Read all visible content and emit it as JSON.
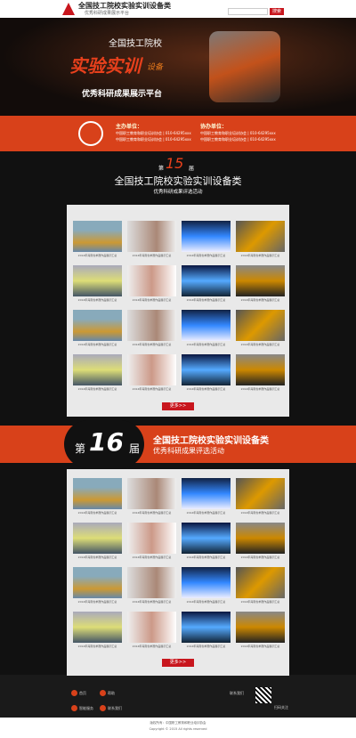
{
  "header": {
    "title": "全国技工院校实验实训设备类",
    "subtitle": "优秀科研成果展示平台",
    "search_button": "搜索"
  },
  "banner": {
    "line1": "全国技工院校",
    "line2": "实验实训",
    "line2b": "设备",
    "line3": "优秀科研成果展示平台"
  },
  "organizers": {
    "host_label": "主办单位：",
    "host_lines": [
      "中国职工教育和职业培训协会 | 010-64295xxx",
      "中国职工教育和职业培训协会 | 010-64295xxx"
    ],
    "co_label": "协办单位：",
    "co_lines": [
      "中国职工教育和职业培训协会 | 010-64295xxx",
      "中国职工教育和职业培训协会 | 010-64295xxx"
    ]
  },
  "sections": [
    {
      "prefix": "第",
      "edition": "15",
      "suffix": "届",
      "title": "全国技工院校实验实训设备类",
      "subtitle": "优秀科研成果评选活动",
      "more": "更多>>",
      "items": [
        "2014年海南省参赛作品展示汇总",
        "2014年海南省参赛作品展示汇总",
        "2014年海南省参赛作品展示汇总",
        "2014年海南省参赛作品展示汇总",
        "2014年海南省参赛作品展示汇总",
        "2014年海南省参赛作品展示汇总",
        "2014年海南省参赛作品展示汇总",
        "2014年海南省参赛作品展示汇总",
        "2014年海南省参赛作品展示汇总",
        "2014年海南省参赛作品展示汇总",
        "2014年海南省参赛作品展示汇总",
        "2014年海南省参赛作品展示汇总",
        "2014年海南省参赛作品展示汇总",
        "2014年海南省参赛作品展示汇总",
        "2014年海南省参赛作品展示汇总",
        "2014年海南省参赛作品展示汇总"
      ]
    },
    {
      "prefix": "第",
      "edition": "16",
      "suffix": "届",
      "title": "全国技工院校实验实训设备类",
      "subtitle": "优秀科研成果评选活动",
      "more": "更多>>",
      "items": [
        "2014年海南省参赛作品展示汇总",
        "2014年海南省参赛作品展示汇总",
        "2014年海南省参赛作品展示汇总",
        "2014年海南省参赛作品展示汇总",
        "2014年海南省参赛作品展示汇总",
        "2014年海南省参赛作品展示汇总",
        "2014年海南省参赛作品展示汇总",
        "2014年海南省参赛作品展示汇总",
        "2014年海南省参赛作品展示汇总",
        "2014年海南省参赛作品展示汇总",
        "2014年海南省参赛作品展示汇总",
        "2014年海南省参赛作品展示汇总",
        "2014年海南省参赛作品展示汇总",
        "2014年海南省参赛作品展示汇总",
        "2014年海南省参赛作品展示汇总",
        "2014年海南省参赛作品展示汇总"
      ]
    }
  ],
  "footer": {
    "links": [
      "首页",
      "帮助",
      "智能服务",
      "联系我们"
    ],
    "right": [
      "联系我们",
      "扫码关注"
    ],
    "copyright": [
      "版权所有：中国职工教育和职业培训协会",
      "Copyright © 2015 All rights reserved"
    ]
  }
}
